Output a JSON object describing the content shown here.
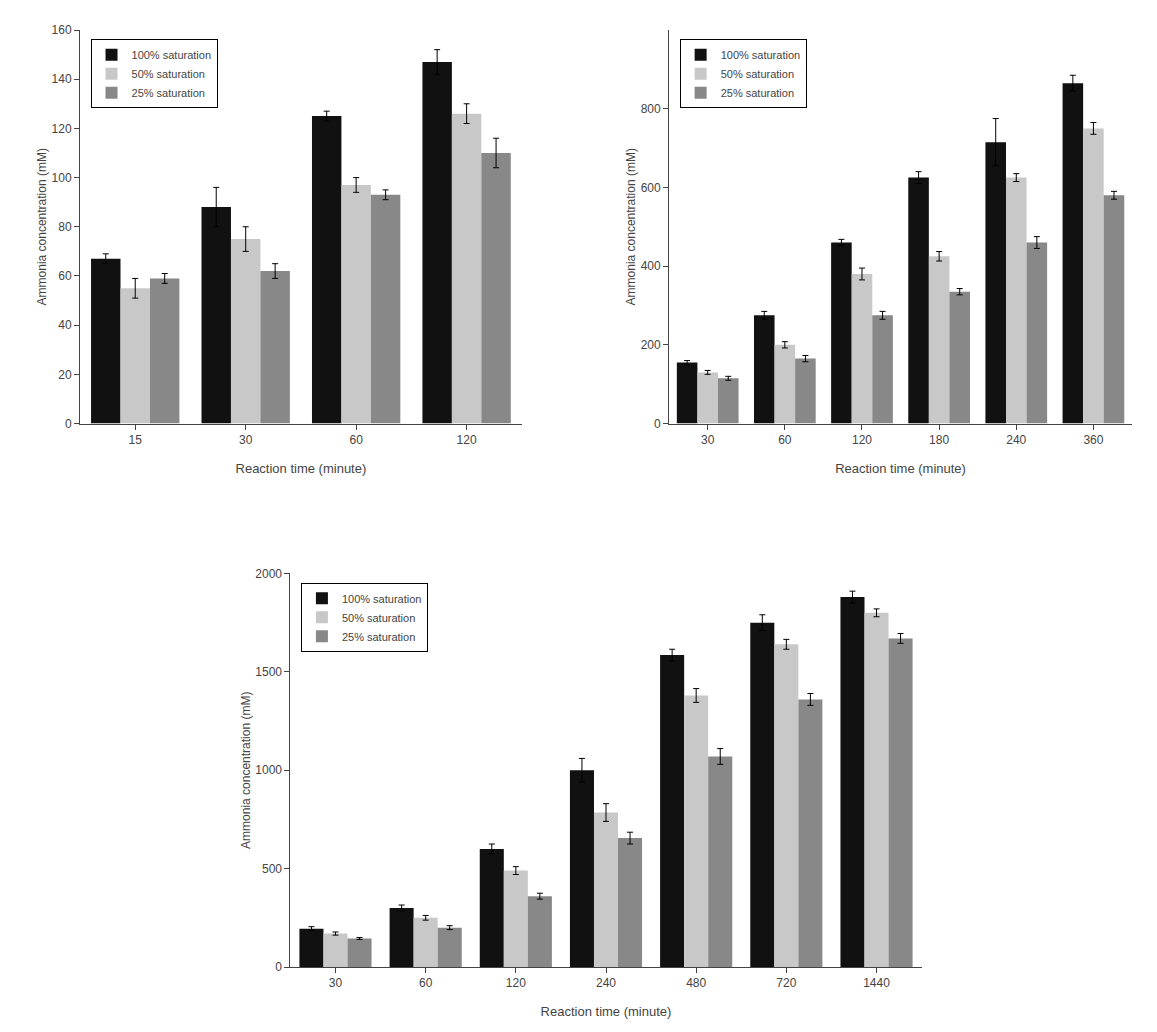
{
  "chart_data": [
    {
      "type": "bar",
      "x_label": "Reaction time (minute)",
      "y_label": "Ammonia concentration (mM)",
      "categories": [
        "15",
        "30",
        "60",
        "120"
      ],
      "series": [
        {
          "name": "100% saturation",
          "color": "#111111",
          "values": [
            67,
            88,
            125,
            147
          ],
          "errors": [
            2,
            8,
            2,
            5
          ]
        },
        {
          "name": "50% saturation",
          "color": "#c8c8c8",
          "values": [
            55,
            75,
            97,
            126
          ],
          "errors": [
            4,
            5,
            3,
            4
          ]
        },
        {
          "name": "25% saturation",
          "color": "#888888",
          "values": [
            59,
            62,
            93,
            110
          ],
          "errors": [
            2,
            3,
            2,
            6
          ]
        }
      ],
      "ylim": [
        0,
        160
      ],
      "yticks": [
        0,
        20,
        40,
        60,
        80,
        100,
        120,
        140,
        160
      ],
      "grid": false,
      "legend": "upper left"
    },
    {
      "type": "bar",
      "x_label": "Reaction time (minute)",
      "y_label": "Ammonia concentration (mM)",
      "categories": [
        "30",
        "60",
        "120",
        "180",
        "240",
        "360"
      ],
      "series": [
        {
          "name": "100% saturation",
          "color": "#111111",
          "values": [
            155,
            275,
            460,
            625,
            715,
            865
          ],
          "errors": [
            5,
            10,
            8,
            15,
            60,
            20
          ]
        },
        {
          "name": "50% saturation",
          "color": "#c8c8c8",
          "values": [
            130,
            200,
            380,
            425,
            625,
            750
          ],
          "errors": [
            5,
            8,
            15,
            12,
            10,
            15
          ]
        },
        {
          "name": "25% saturation",
          "color": "#888888",
          "values": [
            115,
            165,
            275,
            335,
            460,
            580
          ],
          "errors": [
            5,
            8,
            10,
            8,
            15,
            10
          ]
        }
      ],
      "ylim": [
        0,
        1000
      ],
      "yticks": [
        0,
        200,
        400,
        600,
        800
      ],
      "grid": false,
      "legend": "upper left"
    },
    {
      "type": "bar",
      "x_label": "Reaction time (minute)",
      "y_label": "Ammonia concentration (mM)",
      "categories": [
        "30",
        "60",
        "120",
        "240",
        "480",
        "720",
        "1440"
      ],
      "series": [
        {
          "name": "100% saturation",
          "color": "#111111",
          "values": [
            195,
            300,
            600,
            1000,
            1585,
            1750,
            1880
          ],
          "errors": [
            10,
            15,
            25,
            60,
            30,
            40,
            30
          ]
        },
        {
          "name": "50% saturation",
          "color": "#c8c8c8",
          "values": [
            170,
            250,
            490,
            785,
            1380,
            1640,
            1800
          ],
          "errors": [
            8,
            12,
            20,
            45,
            35,
            25,
            20
          ]
        },
        {
          "name": "25% saturation",
          "color": "#888888",
          "values": [
            145,
            200,
            360,
            655,
            1070,
            1360,
            1670
          ],
          "errors": [
            5,
            10,
            15,
            30,
            40,
            30,
            25
          ]
        }
      ],
      "ylim": [
        0,
        2000
      ],
      "yticks": [
        0,
        500,
        1000,
        1500,
        2000
      ],
      "grid": false,
      "legend": "upper left"
    }
  ]
}
